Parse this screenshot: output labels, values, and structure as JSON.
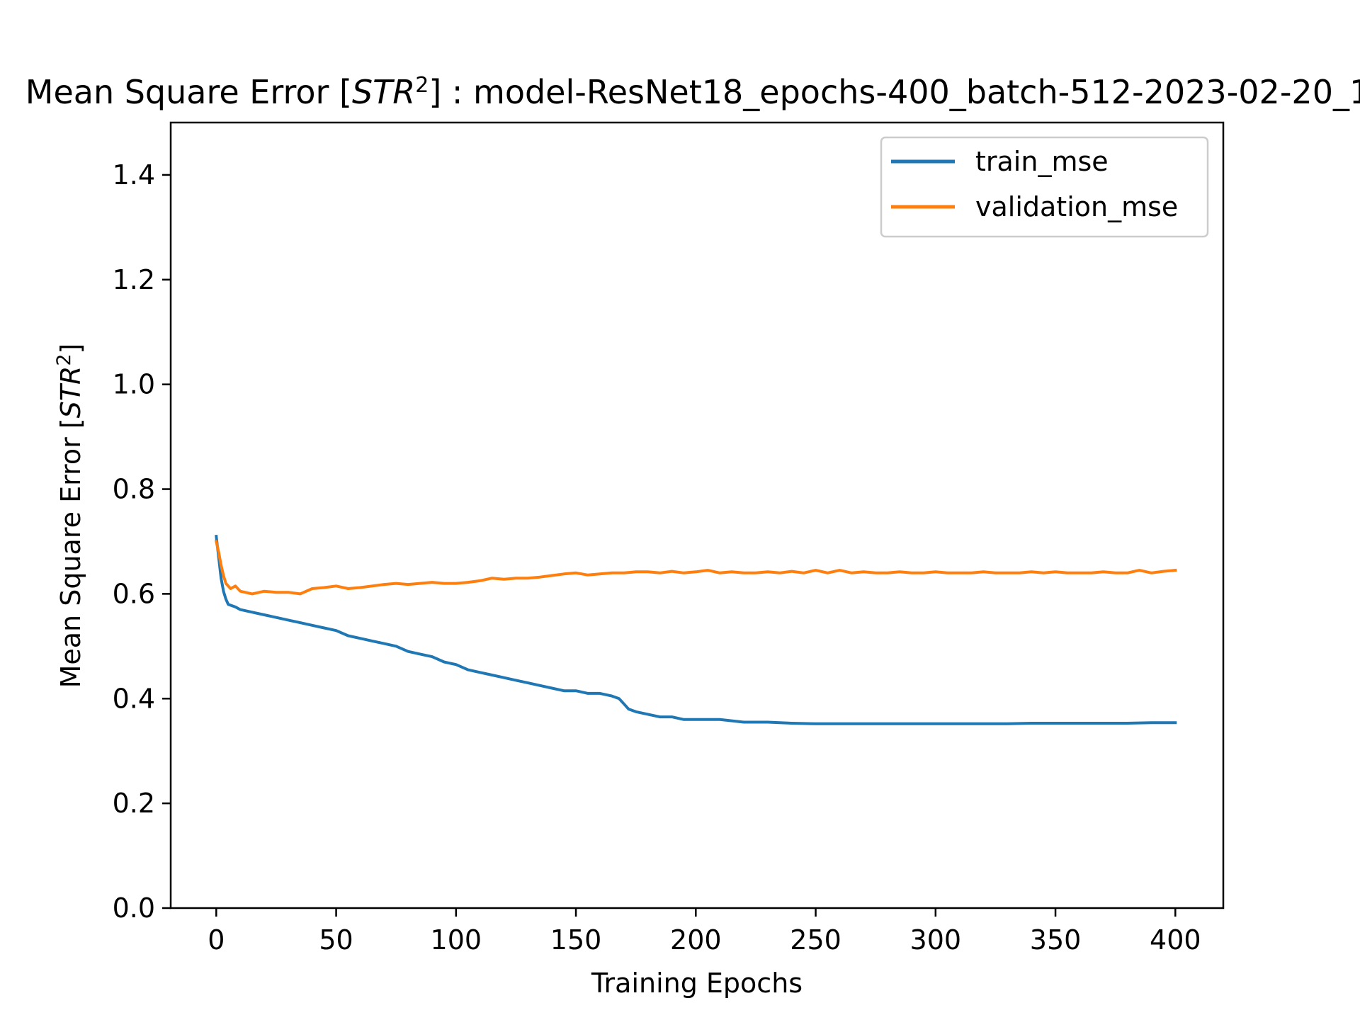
{
  "chart_data": {
    "type": "line",
    "title_parts": {
      "prefix": "Mean Square Error [",
      "unit": "STR",
      "sup": "2",
      "suffix": "] : model-ResNet18_epochs-400_batch-512-2023-02-20_1"
    },
    "xlabel": "Training Epochs",
    "ylabel_parts": {
      "prefix": "Mean Square Error [",
      "unit": "STR",
      "sup": "2",
      "suffix": "]"
    },
    "xlim": [
      -19,
      420
    ],
    "ylim": [
      0.0,
      1.5
    ],
    "xticks": [
      "0",
      "50",
      "100",
      "150",
      "200",
      "250",
      "300",
      "350",
      "400"
    ],
    "yticks": [
      "0.0",
      "0.2",
      "0.4",
      "0.6",
      "0.8",
      "1.0",
      "1.2",
      "1.4"
    ],
    "grid": false,
    "legend_position": "upper right",
    "series": [
      {
        "name": "train_mse",
        "color": "#1f77b4",
        "points": [
          [
            0,
            0.71
          ],
          [
            1,
            0.67
          ],
          [
            2,
            0.63
          ],
          [
            3,
            0.605
          ],
          [
            4,
            0.59
          ],
          [
            5,
            0.58
          ],
          [
            8,
            0.575
          ],
          [
            10,
            0.57
          ],
          [
            15,
            0.565
          ],
          [
            20,
            0.56
          ],
          [
            25,
            0.555
          ],
          [
            30,
            0.55
          ],
          [
            35,
            0.545
          ],
          [
            40,
            0.54
          ],
          [
            45,
            0.535
          ],
          [
            50,
            0.53
          ],
          [
            55,
            0.52
          ],
          [
            60,
            0.515
          ],
          [
            65,
            0.51
          ],
          [
            70,
            0.505
          ],
          [
            75,
            0.5
          ],
          [
            80,
            0.49
          ],
          [
            85,
            0.485
          ],
          [
            90,
            0.48
          ],
          [
            95,
            0.47
          ],
          [
            100,
            0.465
          ],
          [
            105,
            0.455
          ],
          [
            110,
            0.45
          ],
          [
            115,
            0.445
          ],
          [
            120,
            0.44
          ],
          [
            125,
            0.435
          ],
          [
            130,
            0.43
          ],
          [
            135,
            0.425
          ],
          [
            140,
            0.42
          ],
          [
            145,
            0.415
          ],
          [
            150,
            0.415
          ],
          [
            155,
            0.41
          ],
          [
            160,
            0.41
          ],
          [
            165,
            0.405
          ],
          [
            168,
            0.4
          ],
          [
            170,
            0.39
          ],
          [
            172,
            0.38
          ],
          [
            175,
            0.375
          ],
          [
            180,
            0.37
          ],
          [
            185,
            0.365
          ],
          [
            190,
            0.365
          ],
          [
            195,
            0.36
          ],
          [
            200,
            0.36
          ],
          [
            210,
            0.36
          ],
          [
            220,
            0.355
          ],
          [
            230,
            0.355
          ],
          [
            240,
            0.353
          ],
          [
            250,
            0.352
          ],
          [
            260,
            0.352
          ],
          [
            270,
            0.352
          ],
          [
            280,
            0.352
          ],
          [
            290,
            0.352
          ],
          [
            300,
            0.352
          ],
          [
            310,
            0.352
          ],
          [
            320,
            0.352
          ],
          [
            330,
            0.352
          ],
          [
            340,
            0.353
          ],
          [
            350,
            0.353
          ],
          [
            360,
            0.353
          ],
          [
            370,
            0.353
          ],
          [
            380,
            0.353
          ],
          [
            390,
            0.354
          ],
          [
            400,
            0.354
          ]
        ]
      },
      {
        "name": "validation_mse",
        "color": "#ff7f0e",
        "points": [
          [
            0,
            0.7
          ],
          [
            1,
            0.68
          ],
          [
            2,
            0.655
          ],
          [
            3,
            0.635
          ],
          [
            4,
            0.62
          ],
          [
            6,
            0.61
          ],
          [
            8,
            0.615
          ],
          [
            10,
            0.605
          ],
          [
            15,
            0.6
          ],
          [
            20,
            0.605
          ],
          [
            25,
            0.603
          ],
          [
            30,
            0.603
          ],
          [
            35,
            0.6
          ],
          [
            40,
            0.61
          ],
          [
            45,
            0.612
          ],
          [
            50,
            0.615
          ],
          [
            55,
            0.61
          ],
          [
            60,
            0.612
          ],
          [
            65,
            0.615
          ],
          [
            70,
            0.618
          ],
          [
            75,
            0.62
          ],
          [
            80,
            0.618
          ],
          [
            85,
            0.62
          ],
          [
            90,
            0.622
          ],
          [
            95,
            0.62
          ],
          [
            100,
            0.62
          ],
          [
            105,
            0.622
          ],
          [
            110,
            0.625
          ],
          [
            115,
            0.63
          ],
          [
            120,
            0.628
          ],
          [
            125,
            0.63
          ],
          [
            130,
            0.63
          ],
          [
            135,
            0.632
          ],
          [
            140,
            0.635
          ],
          [
            145,
            0.638
          ],
          [
            150,
            0.64
          ],
          [
            155,
            0.636
          ],
          [
            160,
            0.638
          ],
          [
            165,
            0.64
          ],
          [
            170,
            0.64
          ],
          [
            175,
            0.642
          ],
          [
            180,
            0.642
          ],
          [
            185,
            0.64
          ],
          [
            190,
            0.643
          ],
          [
            195,
            0.64
          ],
          [
            200,
            0.642
          ],
          [
            205,
            0.645
          ],
          [
            210,
            0.64
          ],
          [
            215,
            0.642
          ],
          [
            220,
            0.64
          ],
          [
            225,
            0.64
          ],
          [
            230,
            0.642
          ],
          [
            235,
            0.64
          ],
          [
            240,
            0.643
          ],
          [
            245,
            0.64
          ],
          [
            250,
            0.645
          ],
          [
            255,
            0.64
          ],
          [
            260,
            0.645
          ],
          [
            265,
            0.64
          ],
          [
            270,
            0.642
          ],
          [
            275,
            0.64
          ],
          [
            280,
            0.64
          ],
          [
            285,
            0.642
          ],
          [
            290,
            0.64
          ],
          [
            295,
            0.64
          ],
          [
            300,
            0.642
          ],
          [
            305,
            0.64
          ],
          [
            310,
            0.64
          ],
          [
            315,
            0.64
          ],
          [
            320,
            0.642
          ],
          [
            325,
            0.64
          ],
          [
            330,
            0.64
          ],
          [
            335,
            0.64
          ],
          [
            340,
            0.642
          ],
          [
            345,
            0.64
          ],
          [
            350,
            0.642
          ],
          [
            355,
            0.64
          ],
          [
            360,
            0.64
          ],
          [
            365,
            0.64
          ],
          [
            370,
            0.642
          ],
          [
            375,
            0.64
          ],
          [
            380,
            0.64
          ],
          [
            385,
            0.645
          ],
          [
            390,
            0.64
          ],
          [
            395,
            0.643
          ],
          [
            400,
            0.645
          ]
        ]
      }
    ]
  }
}
